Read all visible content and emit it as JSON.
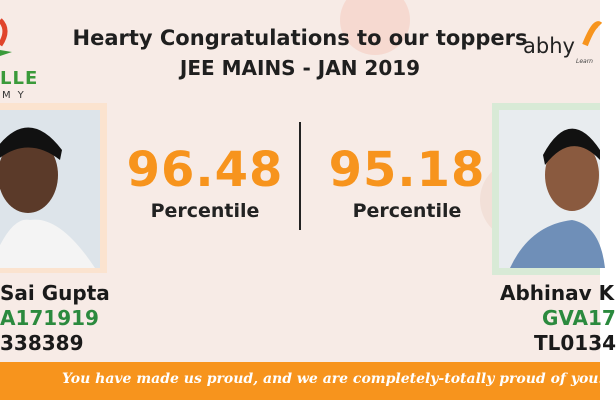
{
  "header": {
    "title": "Hearty Congratulations to our toppers",
    "subtitle": "JEE MAINS - JAN 2019"
  },
  "logo_left": {
    "name": "LLE",
    "subtitle": "MY"
  },
  "logo_right": {
    "name": "abhy",
    "tagline": "Learn"
  },
  "toppers": [
    {
      "score": "96.48",
      "score_label": "Percentile",
      "name": "Sai Gupta",
      "id": "A171919",
      "roll": "338389"
    },
    {
      "score": "95.18",
      "score_label": "Percentile",
      "name": "Abhinav K",
      "id": "GVA17",
      "roll": "TL0134"
    }
  ],
  "footer": {
    "text": "You have made us proud, and we are  completely-totally proud of you!"
  }
}
